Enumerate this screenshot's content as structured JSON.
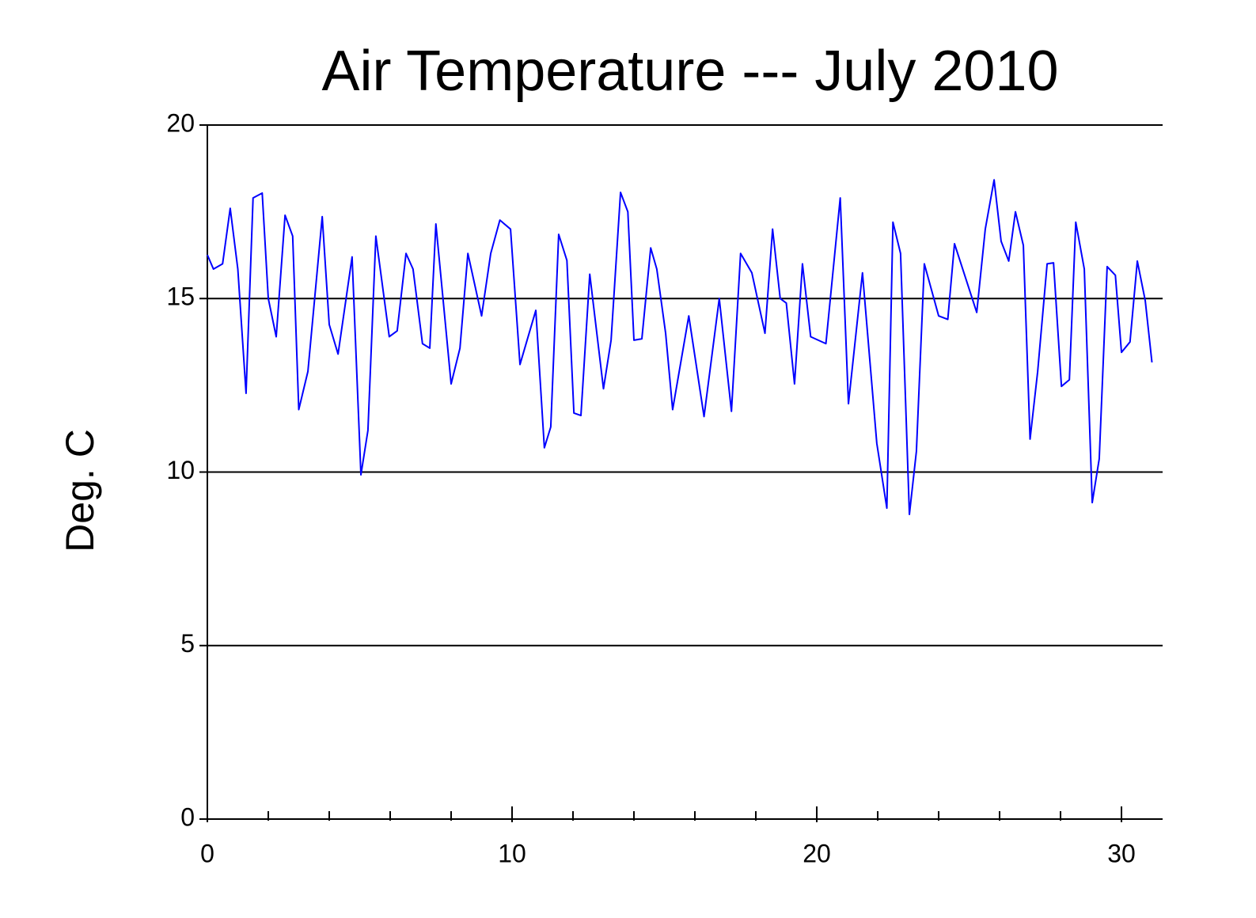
{
  "chart_data": {
    "type": "line",
    "title": "Air Temperature --- July 2010",
    "ylabel": "Deg. C",
    "x": [
      0,
      0.2,
      0.5,
      0.75,
      1.0,
      1.27,
      1.5,
      1.8,
      2.0,
      2.26,
      2.55,
      2.8,
      3.0,
      3.3,
      3.77,
      4.0,
      4.29,
      4.75,
      5.04,
      5.27,
      5.53,
      5.97,
      6.23,
      6.52,
      6.75,
      7.06,
      7.3,
      7.5,
      8.0,
      8.29,
      8.55,
      9.0,
      9.3,
      9.6,
      9.95,
      10.26,
      10.78,
      11.06,
      11.27,
      11.53,
      11.8,
      12.03,
      12.26,
      12.55,
      13.0,
      13.25,
      13.56,
      13.8,
      14.0,
      14.26,
      14.55,
      14.75,
      15.04,
      15.27,
      15.8,
      16.3,
      16.8,
      17.2,
      17.5,
      17.87,
      18.3,
      18.55,
      18.8,
      19.0,
      19.27,
      19.53,
      19.8,
      20.3,
      20.77,
      21.04,
      21.5,
      21.97,
      22.3,
      22.5,
      22.75,
      23.04,
      23.27,
      23.53,
      24.0,
      24.3,
      24.52,
      25.25,
      25.53,
      25.82,
      26.05,
      26.3,
      26.52,
      26.78,
      27.0,
      27.25,
      27.56,
      27.77,
      28.03,
      28.29,
      28.5,
      28.78,
      29.04,
      29.27,
      29.53,
      29.8,
      30.0,
      30.28,
      30.52,
      30.78,
      31.0
    ],
    "series": [
      {
        "name": "Air Temperature",
        "color": "#0000ff",
        "values": [
          16.26,
          15.85,
          16.0,
          17.6,
          15.85,
          12.27,
          17.9,
          18.04,
          15.0,
          13.9,
          17.4,
          16.8,
          11.8,
          12.9,
          17.36,
          14.25,
          13.4,
          16.2,
          9.92,
          11.2,
          16.8,
          13.9,
          14.07,
          16.3,
          15.85,
          13.7,
          13.57,
          17.15,
          12.54,
          13.57,
          16.3,
          14.5,
          16.3,
          17.26,
          17.0,
          13.1,
          14.66,
          10.7,
          11.3,
          16.85,
          16.1,
          11.7,
          11.63,
          15.7,
          12.4,
          13.8,
          18.06,
          17.5,
          13.8,
          13.84,
          16.46,
          15.85,
          14.0,
          11.8,
          14.5,
          11.6,
          15.0,
          11.75,
          16.3,
          15.74,
          14.0,
          17.0,
          15.0,
          14.87,
          12.54,
          16.0,
          13.9,
          13.7,
          17.9,
          11.97,
          15.74,
          10.83,
          8.96,
          17.2,
          16.3,
          8.78,
          10.6,
          16.0,
          14.5,
          14.4,
          16.58,
          14.6,
          17.0,
          18.42,
          16.65,
          16.08,
          17.5,
          16.53,
          10.95,
          12.9,
          16.0,
          16.03,
          12.47,
          12.66,
          17.2,
          15.85,
          9.12,
          10.38,
          15.92,
          15.67,
          13.45,
          13.75,
          16.08,
          14.94,
          13.16
        ]
      }
    ],
    "xlim": [
      0,
      31.35
    ],
    "xticks": [
      0,
      10,
      20,
      30
    ],
    "xminorticks": [
      2,
      4,
      6,
      8,
      12,
      14,
      16,
      18,
      22,
      24,
      26,
      28
    ],
    "ylim": [
      0,
      20
    ],
    "yticks": [
      0,
      5,
      10,
      15,
      20
    ],
    "grid": true
  }
}
